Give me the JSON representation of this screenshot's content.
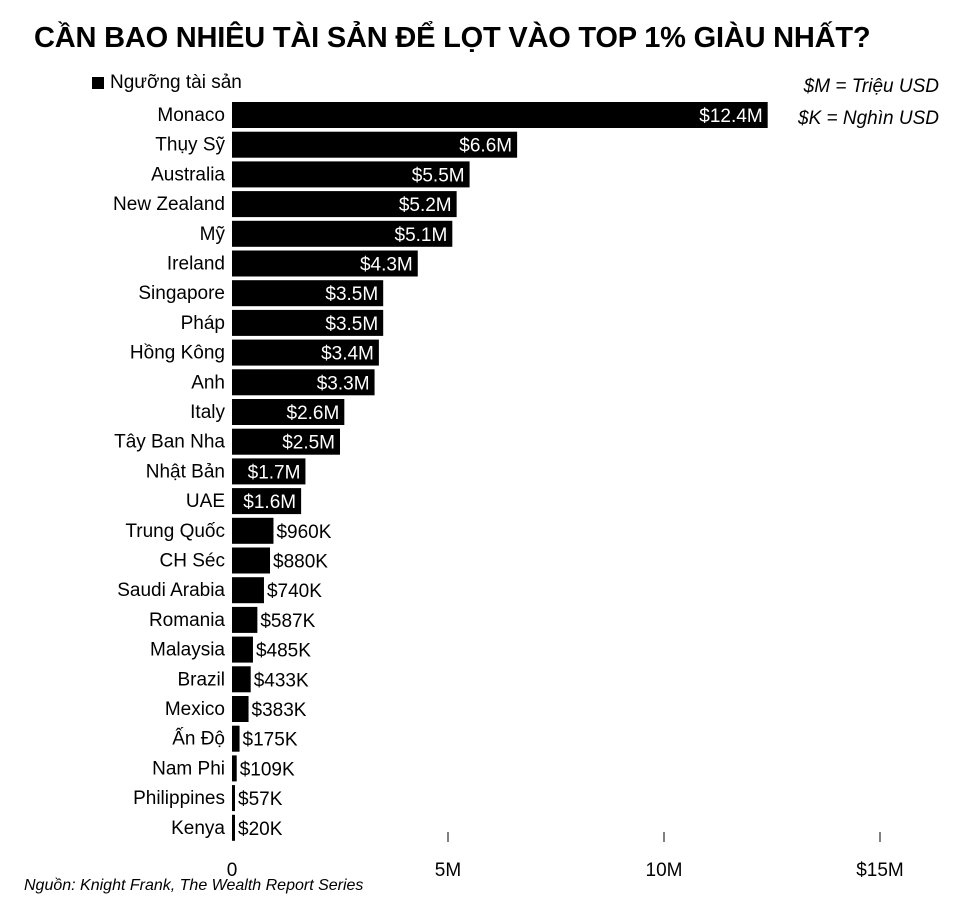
{
  "title": "CẦN BAO NHIÊU TÀI SẢN ĐỂ LỌT VÀO TOP 1% GIÀU NHẤT?",
  "legend": "Ngưỡng tài sản",
  "notes": [
    "$M = Triệu USD",
    "$K = Nghìn USD"
  ],
  "source": "Nguồn: Knight Frank, The Wealth Report Series",
  "colors": {
    "bar": "#000000",
    "label_inside": "#ffffff",
    "label_outside": "#000000"
  },
  "chart_data": {
    "type": "bar",
    "orientation": "horizontal",
    "categories": [
      "Monaco",
      "Thụy Sỹ",
      "Australia",
      "New Zealand",
      "Mỹ",
      "Ireland",
      "Singapore",
      "Pháp",
      "Hồng Kông",
      "Anh",
      "Italy",
      "Tây Ban Nha",
      "Nhật Bản",
      "UAE",
      "Trung Quốc",
      "CH Séc",
      "Saudi Arabia",
      "Romania",
      "Malaysia",
      "Brazil",
      "Mexico",
      "Ấn Độ",
      "Nam Phi",
      "Philippines",
      "Kenya"
    ],
    "values": [
      12.4,
      6.6,
      5.5,
      5.2,
      5.1,
      4.3,
      3.5,
      3.5,
      3.4,
      3.3,
      2.6,
      2.5,
      1.7,
      1.6,
      0.96,
      0.88,
      0.74,
      0.587,
      0.485,
      0.433,
      0.383,
      0.175,
      0.109,
      0.057,
      0.02
    ],
    "value_labels": [
      "$12.4M",
      "$6.6M",
      "$5.5M",
      "$5.2M",
      "$5.1M",
      "$4.3M",
      "$3.5M",
      "$3.5M",
      "$3.4M",
      "$3.3M",
      "$2.6M",
      "$2.5M",
      "$1.7M",
      "$1.6M",
      "$960K",
      "$880K",
      "$740K",
      "$587K",
      "$485K",
      "$433K",
      "$383K",
      "$175K",
      "$109K",
      "$57K",
      "$20K"
    ],
    "x_ticks": [
      0,
      5,
      10,
      15
    ],
    "x_tick_labels": [
      "0",
      "5M",
      "10M",
      "$15M"
    ],
    "xlim": [
      0,
      15
    ],
    "xlabel": "",
    "ylabel": "",
    "grid": false,
    "legend_position": "top-left"
  }
}
